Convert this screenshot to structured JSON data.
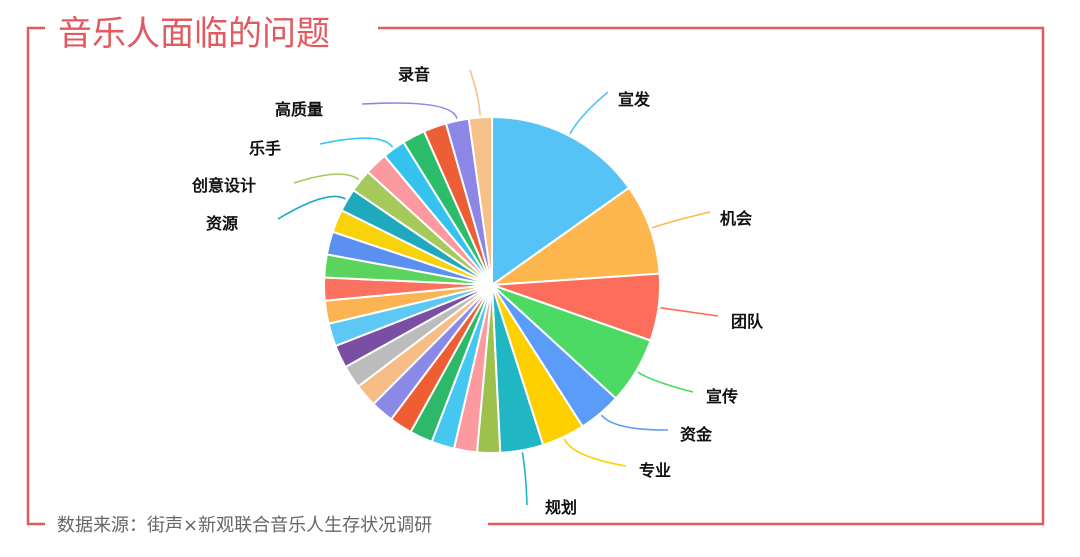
{
  "title": "音乐人面临的问题",
  "source": "数据来源：街声×新观联合音乐人生存状况调研",
  "frame_color": "#e15a5f",
  "title_color": "#e15a5f",
  "source_color": "#666666",
  "chart_data": {
    "type": "pie",
    "start_angle_deg": 0,
    "direction": "clockwise",
    "legend": "none",
    "slices": [
      {
        "label": "宣发",
        "value": 16.5,
        "color": "#56c3f7"
      },
      {
        "label": "机会",
        "value": 9.5,
        "color": "#feb74e"
      },
      {
        "label": "团队",
        "value": 7.0,
        "color": "#fd6d5c"
      },
      {
        "label": "宣传",
        "value": 7.0,
        "color": "#4cd964"
      },
      {
        "label": "资金",
        "value": 4.5,
        "color": "#5a9cf8"
      },
      {
        "label": "专业",
        "value": 4.5,
        "color": "#fed000"
      },
      {
        "label": "规划",
        "value": 4.5,
        "color": "#20b6c4"
      },
      {
        "label": "",
        "value": 2.4,
        "color": "#9ec14e"
      },
      {
        "label": "",
        "value": 2.4,
        "color": "#fd9aa0"
      },
      {
        "label": "",
        "value": 2.4,
        "color": "#45c7ef"
      },
      {
        "label": "",
        "value": 2.4,
        "color": "#2eb96a"
      },
      {
        "label": "",
        "value": 2.4,
        "color": "#ef5e33"
      },
      {
        "label": "",
        "value": 2.4,
        "color": "#8a8ae6"
      },
      {
        "label": "",
        "value": 2.4,
        "color": "#f6bd87"
      },
      {
        "label": "",
        "value": 2.4,
        "color": "#bcbcbc"
      },
      {
        "label": "",
        "value": 2.4,
        "color": "#7a4ea3"
      },
      {
        "label": "",
        "value": 2.4,
        "color": "#5ec8f4"
      },
      {
        "label": "",
        "value": 2.4,
        "color": "#fcb352"
      },
      {
        "label": "",
        "value": 2.4,
        "color": "#fb7260"
      },
      {
        "label": "",
        "value": 2.4,
        "color": "#5ad45e"
      },
      {
        "label": "",
        "value": 2.4,
        "color": "#5b8ff0"
      },
      {
        "label": "",
        "value": 2.4,
        "color": "#f8d20a"
      },
      {
        "label": "资源",
        "value": 2.4,
        "color": "#1ea9bd"
      },
      {
        "label": "创意设计",
        "value": 2.4,
        "color": "#a5c95a"
      },
      {
        "label": "",
        "value": 2.4,
        "color": "#fc98a0"
      },
      {
        "label": "乐手",
        "value": 2.4,
        "color": "#33c3ee"
      },
      {
        "label": "",
        "value": 2.4,
        "color": "#2cbd6b"
      },
      {
        "label": "",
        "value": 2.4,
        "color": "#ec5e35"
      },
      {
        "label": "高质量",
        "value": 2.4,
        "color": "#8c87e6"
      },
      {
        "label": "录音",
        "value": 2.4,
        "color": "#f5c189"
      }
    ]
  }
}
